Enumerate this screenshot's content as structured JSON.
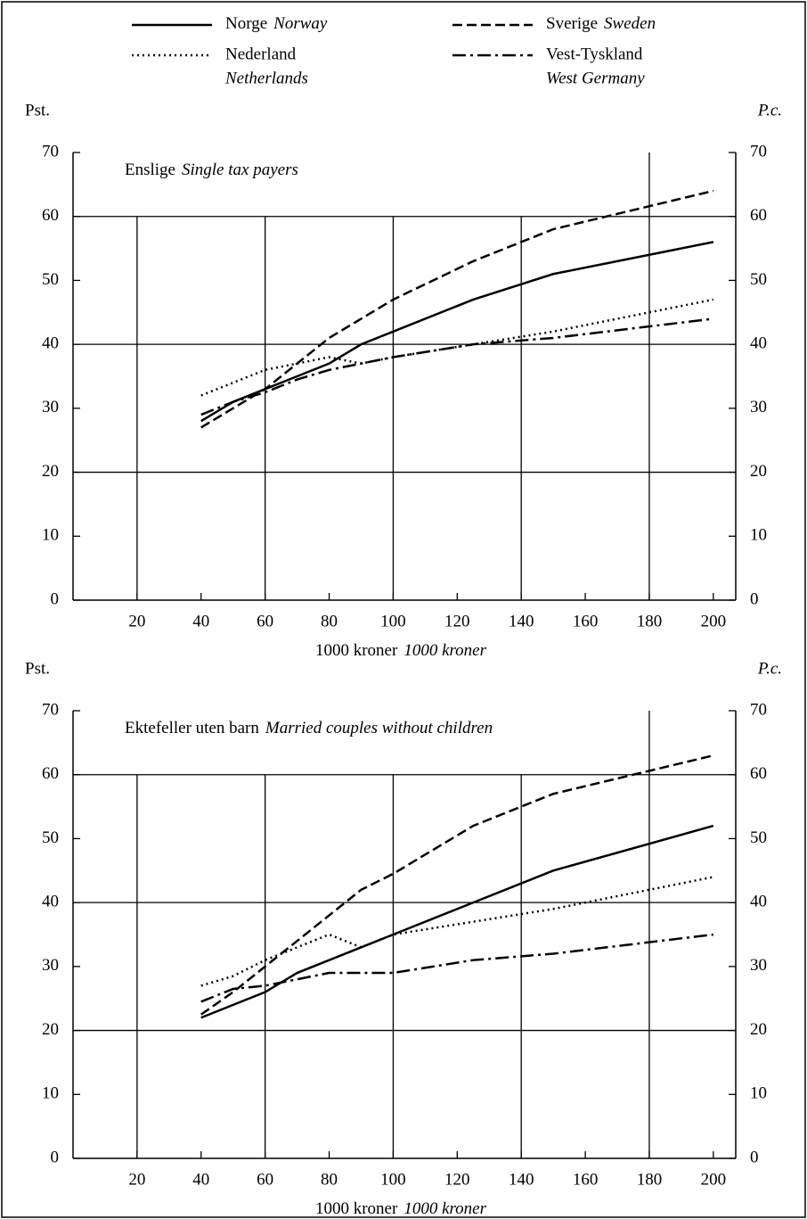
{
  "chart_data": [
    {
      "type": "line",
      "title": "Enslige",
      "title_en": "Single tax payers",
      "xlabel": "1000 kroner",
      "xlabel_en": "1000 kroner",
      "ylabel": "Pst.",
      "y2label": "P.c.",
      "x": [
        40,
        50,
        60,
        70,
        80,
        90,
        100,
        125,
        150,
        200
      ],
      "xlim": [
        0,
        207
      ],
      "xticks": [
        20,
        40,
        60,
        80,
        100,
        120,
        140,
        160,
        180,
        200
      ],
      "ylim": [
        0,
        70
      ],
      "yticks": [
        0,
        10,
        20,
        30,
        40,
        50,
        60,
        70
      ],
      "xgrid": [
        20,
        60,
        100,
        140,
        180
      ],
      "ygrid": [
        20,
        40,
        60
      ],
      "series": [
        {
          "name": "Norge",
          "name_en": "Norway",
          "color": "#000000",
          "dash": "solid",
          "values": [
            28,
            31,
            33,
            35,
            37,
            40,
            42,
            47,
            51,
            56
          ]
        },
        {
          "name": "Sverige",
          "name_en": "Sweden",
          "color": "#000000",
          "dash": "dashed",
          "values": [
            27,
            30,
            33,
            37,
            41,
            44,
            47,
            53,
            58,
            64
          ]
        },
        {
          "name": "Nederland",
          "name_en": "Netherlands",
          "color": "#000000",
          "dash": "dotted",
          "values": [
            32,
            34,
            36,
            37,
            38,
            37,
            38,
            40,
            42,
            47
          ]
        },
        {
          "name": "Vest-Tyskland",
          "name_en": "West Germany",
          "color": "#000000",
          "dash": "dashdot",
          "values": [
            29,
            31,
            32.5,
            34.5,
            36,
            37,
            38,
            40,
            41,
            44
          ]
        }
      ]
    },
    {
      "type": "line",
      "title": "Ektefeller uten barn",
      "title_en": "Married couples without children",
      "xlabel": "1000 kroner",
      "xlabel_en": "1000 kroner",
      "ylabel": "Pst.",
      "y2label": "P.c.",
      "x": [
        40,
        50,
        60,
        70,
        80,
        90,
        100,
        125,
        150,
        200
      ],
      "xlim": [
        0,
        207
      ],
      "xticks": [
        20,
        40,
        60,
        80,
        100,
        120,
        140,
        160,
        180,
        200
      ],
      "ylim": [
        0,
        70
      ],
      "yticks": [
        0,
        10,
        20,
        30,
        40,
        50,
        60,
        70
      ],
      "xgrid": [
        20,
        60,
        100,
        140,
        180
      ],
      "ygrid": [
        20,
        40,
        60
      ],
      "series": [
        {
          "color": "#000000",
          "dash": "solid",
          "values": [
            22,
            24,
            26,
            29,
            31,
            33,
            35,
            40,
            45,
            52
          ]
        },
        {
          "color": "#000000",
          "dash": "dashed",
          "values": [
            22.5,
            26,
            30,
            34,
            38,
            42,
            44.5,
            52,
            57,
            63
          ]
        },
        {
          "color": "#000000",
          "dash": "dotted",
          "values": [
            27,
            28.5,
            31,
            33,
            35,
            33,
            35,
            37,
            39,
            44
          ]
        },
        {
          "color": "#000000",
          "dash": "dashdot",
          "values": [
            24.5,
            26.5,
            27,
            28,
            29,
            29,
            29,
            31,
            32,
            35
          ]
        }
      ]
    }
  ]
}
